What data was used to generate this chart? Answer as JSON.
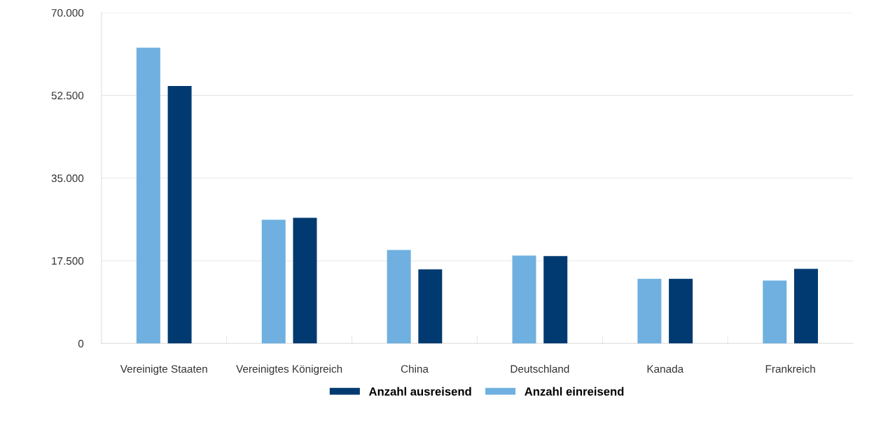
{
  "chart_data": {
    "type": "bar",
    "categories": [
      "Vereinigte Staaten",
      "Vereinigtes Königreich",
      "China",
      "Deutschland",
      "Kanada",
      "Frankreich"
    ],
    "series": [
      {
        "name": "Anzahl einreisend",
        "color": "#6fb0e0",
        "values": [
          62600,
          26200,
          19800,
          18600,
          13700,
          13300
        ]
      },
      {
        "name": "Anzahl ausreisend",
        "color": "#003a70",
        "values": [
          54500,
          26600,
          15700,
          18500,
          13700,
          15800
        ]
      }
    ],
    "ylim": [
      0,
      70000
    ],
    "yticks": [
      0,
      {
        "value": 17500,
        "label": "17.500"
      },
      {
        "value": 35000,
        "label": "35.000"
      },
      {
        "value": 52500,
        "label": "52.500"
      },
      {
        "value": 70000,
        "label": "70.000"
      }
    ],
    "grid": "y",
    "legend": "bottom"
  }
}
